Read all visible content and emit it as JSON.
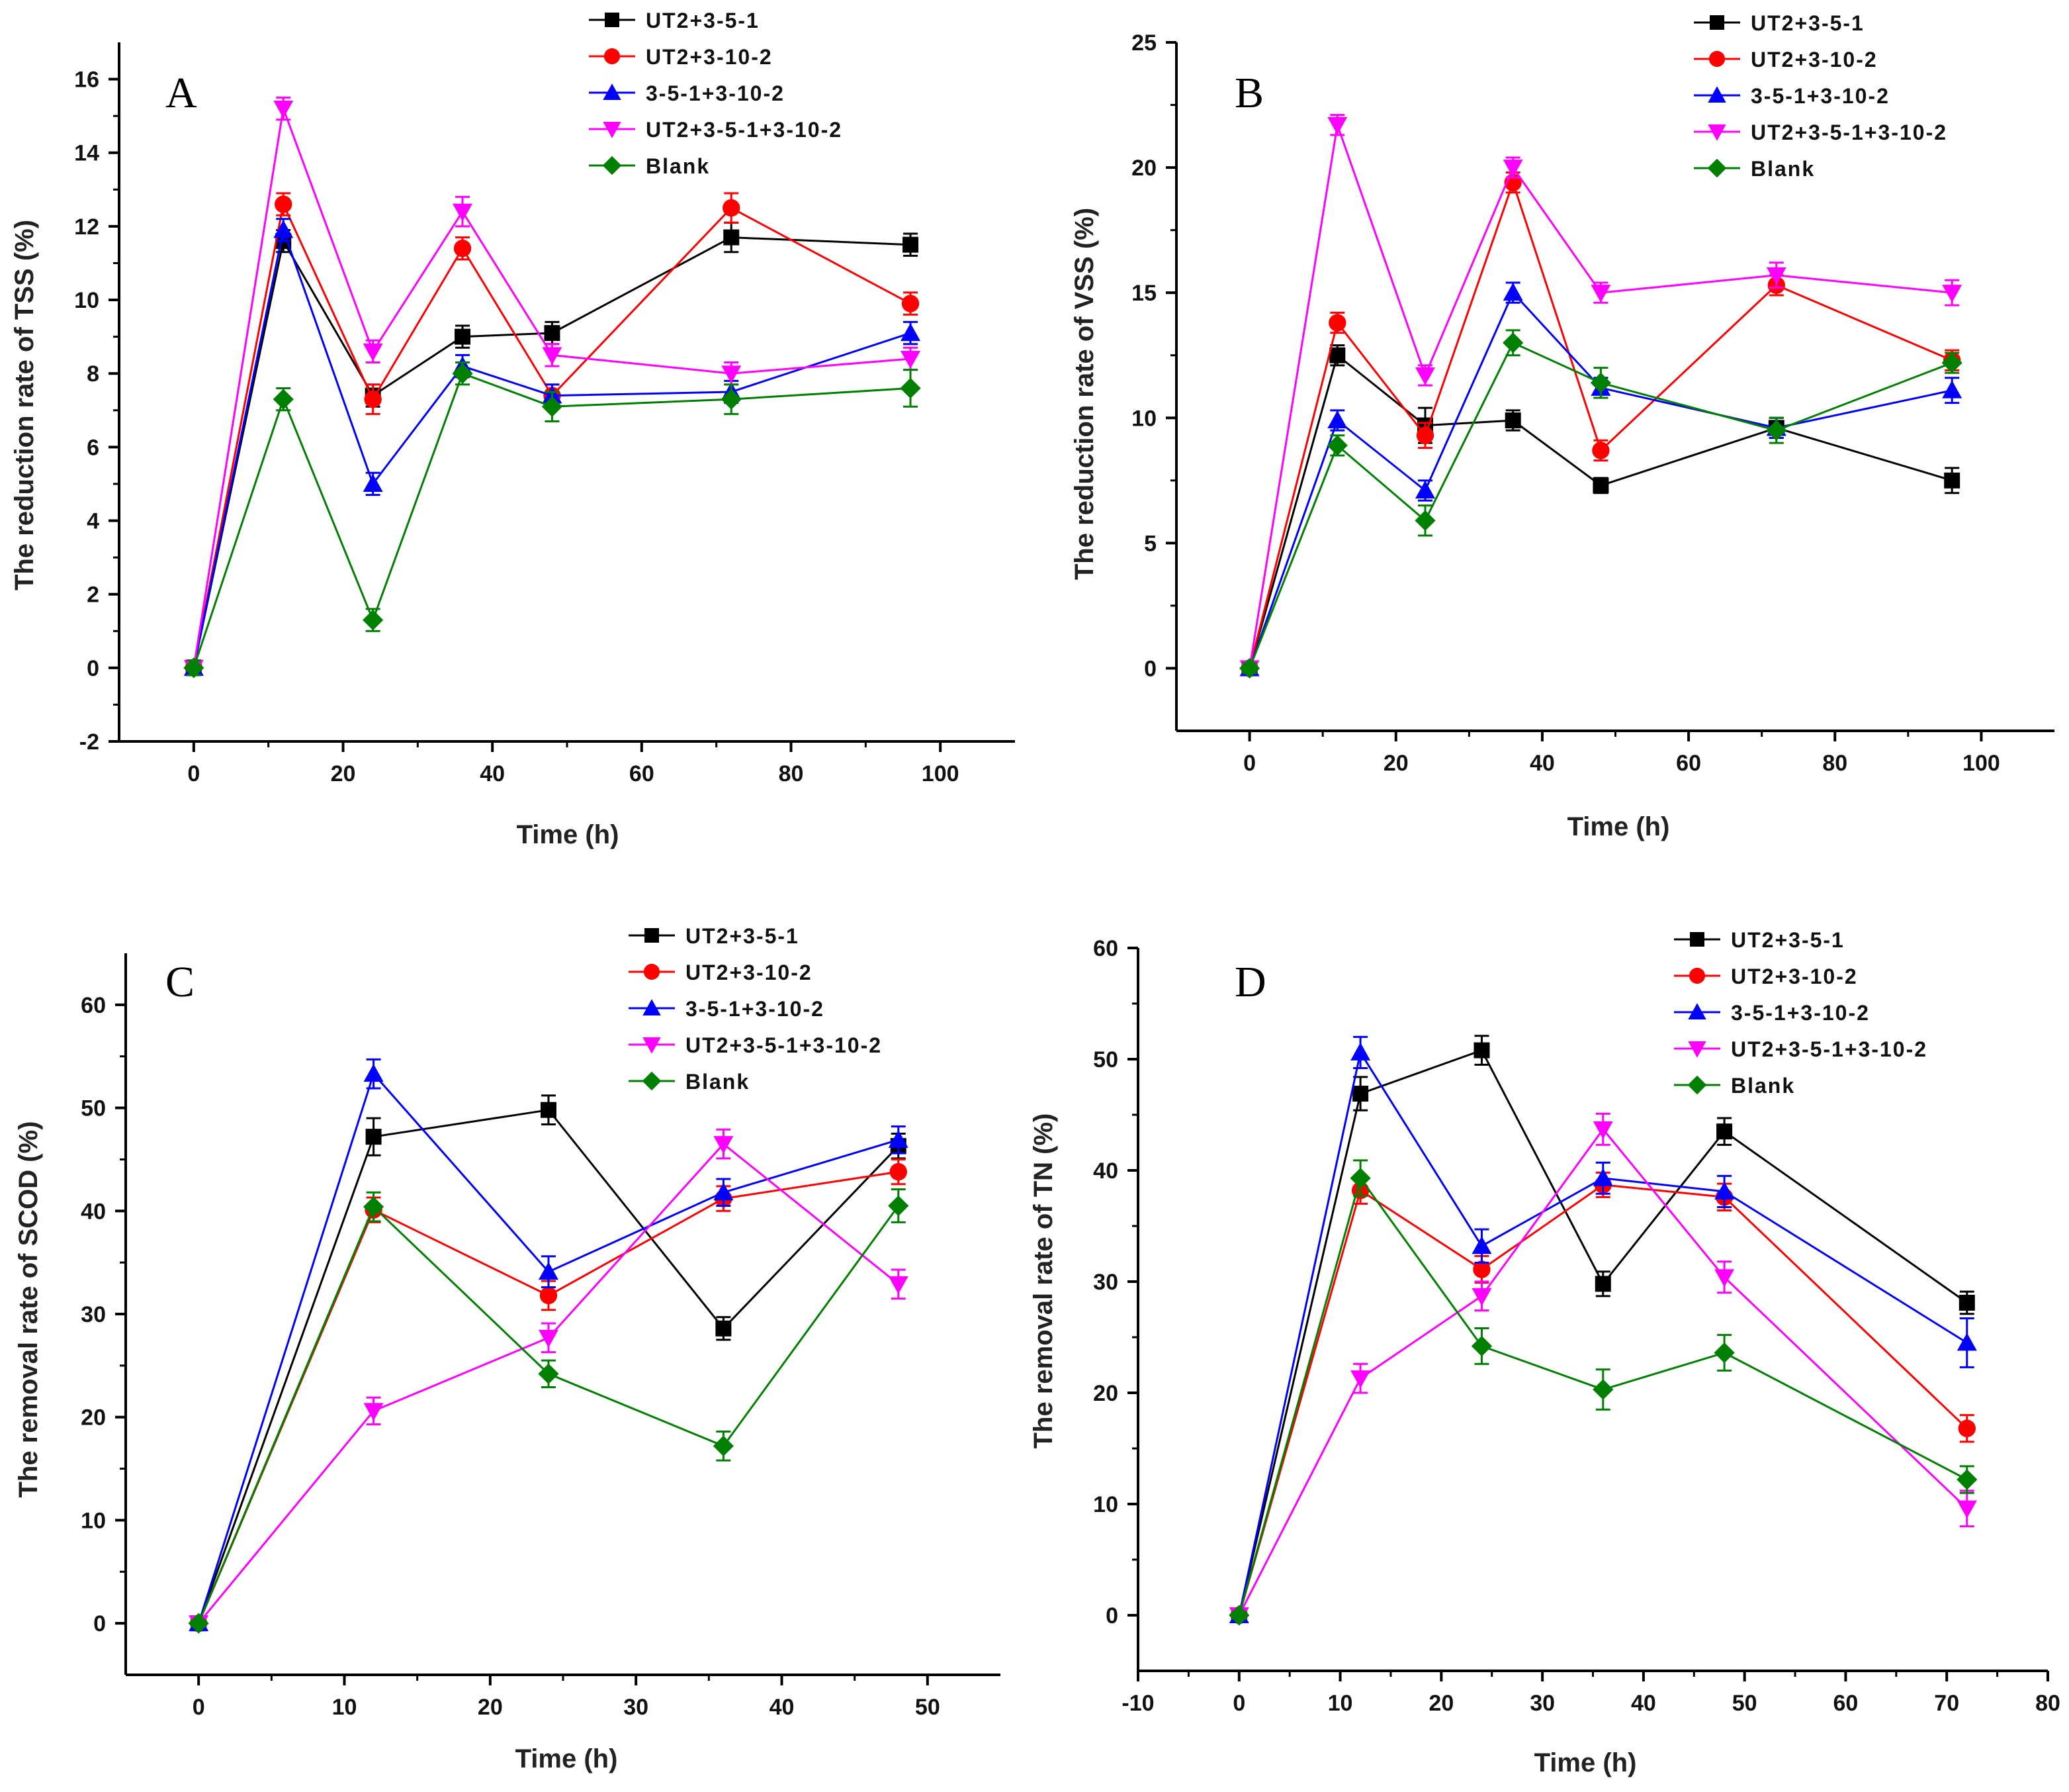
{
  "colors": {
    "UT2+3-5-1": "#000000",
    "UT2+3-10-2": "#ff0000",
    "3-5-1+3-10-2": "#0000ff",
    "UT2+3-5-1+3-10-2": "#ff00ff",
    "Blank": "#008000"
  },
  "chart_data": [
    {
      "type": "line",
      "panel": "A",
      "title": "",
      "xlabel": "Time (h)",
      "ylabel": "The reduction rate of TSS (%)",
      "xlim": [
        -10,
        110
      ],
      "ylim": [
        -2,
        17
      ],
      "xticks": [
        0,
        20,
        40,
        60,
        80,
        100
      ],
      "yticks": [
        -2,
        0,
        2,
        4,
        6,
        8,
        10,
        12,
        14,
        16
      ],
      "legend_position": "top-right",
      "x": [
        0,
        12,
        24,
        36,
        48,
        72,
        96
      ],
      "series": [
        {
          "name": "UT2+3-5-1",
          "marker": "square",
          "values": [
            0,
            11.6,
            7.4,
            9.0,
            9.1,
            11.7,
            11.5
          ],
          "errors": [
            0.2,
            0.3,
            0.3,
            0.3,
            0.3,
            0.4,
            0.3
          ]
        },
        {
          "name": "UT2+3-10-2",
          "marker": "circle",
          "values": [
            0,
            12.6,
            7.3,
            11.4,
            7.4,
            12.5,
            9.9
          ],
          "errors": [
            0.2,
            0.3,
            0.4,
            0.3,
            0.3,
            0.4,
            0.3
          ]
        },
        {
          "name": "3-5-1+3-10-2",
          "marker": "triangle-up",
          "values": [
            0,
            11.9,
            5.0,
            8.2,
            7.4,
            7.5,
            9.1
          ],
          "errors": [
            0.2,
            0.3,
            0.3,
            0.3,
            0.3,
            0.3,
            0.3
          ]
        },
        {
          "name": "UT2+3-5-1+3-10-2",
          "marker": "triangle-down",
          "values": [
            0,
            15.2,
            8.6,
            12.4,
            8.5,
            8.0,
            8.4
          ],
          "errors": [
            0.2,
            0.3,
            0.3,
            0.4,
            0.3,
            0.3,
            0.3
          ]
        },
        {
          "name": "Blank",
          "marker": "diamond",
          "values": [
            0,
            7.3,
            1.3,
            8.0,
            7.1,
            7.3,
            7.6
          ],
          "errors": [
            0.2,
            0.3,
            0.3,
            0.3,
            0.4,
            0.4,
            0.5
          ]
        }
      ]
    },
    {
      "type": "line",
      "panel": "B",
      "title": "",
      "xlabel": "Time (h)",
      "ylabel": "The reduction rate of VSS (%)",
      "xlim": [
        -10,
        110
      ],
      "ylim": [
        -2.5,
        25
      ],
      "xticks": [
        0,
        20,
        40,
        60,
        80,
        100
      ],
      "yticks": [
        0,
        5,
        10,
        15,
        20,
        25
      ],
      "legend_position": "top-right",
      "x": [
        0,
        12,
        24,
        36,
        48,
        72,
        96
      ],
      "series": [
        {
          "name": "UT2+3-5-1",
          "marker": "square",
          "values": [
            0,
            12.5,
            9.7,
            9.9,
            7.3,
            9.6,
            7.5
          ],
          "errors": [
            0.2,
            0.4,
            0.7,
            0.4,
            0.3,
            0.4,
            0.5
          ]
        },
        {
          "name": "UT2+3-10-2",
          "marker": "circle",
          "values": [
            0,
            13.8,
            9.3,
            19.4,
            8.7,
            15.3,
            12.3
          ],
          "errors": [
            0.2,
            0.4,
            0.5,
            0.4,
            0.4,
            0.4,
            0.4
          ]
        },
        {
          "name": "3-5-1+3-10-2",
          "marker": "triangle-up",
          "values": [
            0,
            9.9,
            7.1,
            15.0,
            11.2,
            9.6,
            11.1
          ],
          "errors": [
            0.2,
            0.4,
            0.4,
            0.4,
            0.4,
            0.4,
            0.5
          ]
        },
        {
          "name": "UT2+3-5-1+3-10-2",
          "marker": "triangle-down",
          "values": [
            0,
            21.7,
            11.7,
            20.0,
            15.0,
            15.7,
            15.0
          ],
          "errors": [
            0.2,
            0.4,
            0.4,
            0.4,
            0.4,
            0.5,
            0.5
          ]
        },
        {
          "name": "Blank",
          "marker": "diamond",
          "values": [
            0,
            8.9,
            5.9,
            13.0,
            11.4,
            9.5,
            12.2
          ],
          "errors": [
            0.2,
            0.4,
            0.6,
            0.5,
            0.6,
            0.5,
            0.4
          ]
        }
      ]
    },
    {
      "type": "line",
      "panel": "C",
      "title": "",
      "xlabel": "Time (h)",
      "ylabel": "The removal rate of SCOD (%)",
      "xlim": [
        -5,
        55
      ],
      "ylim": [
        -5,
        65
      ],
      "xticks": [
        0,
        10,
        20,
        30,
        40,
        50
      ],
      "yticks": [
        0,
        10,
        20,
        30,
        40,
        50,
        60
      ],
      "legend_position": "top-right",
      "x": [
        0,
        12,
        24,
        36,
        48
      ],
      "series": [
        {
          "name": "UT2+3-5-1",
          "marker": "square",
          "values": [
            0,
            47.2,
            49.8,
            28.6,
            46.3
          ],
          "errors": [
            0.3,
            1.8,
            1.4,
            1.1,
            1.2
          ]
        },
        {
          "name": "UT2+3-10-2",
          "marker": "circle",
          "values": [
            0,
            40.1,
            31.8,
            41.2,
            43.8
          ],
          "errors": [
            0.3,
            1.2,
            1.4,
            1.2,
            1.2
          ]
        },
        {
          "name": "3-5-1+3-10-2",
          "marker": "triangle-up",
          "values": [
            0,
            53.3,
            34.1,
            41.8,
            46.9
          ],
          "errors": [
            0.3,
            1.4,
            1.5,
            1.3,
            1.3
          ]
        },
        {
          "name": "UT2+3-5-1+3-10-2",
          "marker": "triangle-down",
          "values": [
            0,
            20.6,
            27.7,
            46.5,
            32.9
          ],
          "errors": [
            0.3,
            1.3,
            1.4,
            1.4,
            1.4
          ]
        },
        {
          "name": "Blank",
          "marker": "diamond",
          "values": [
            0,
            40.4,
            24.2,
            17.2,
            40.5
          ],
          "errors": [
            0.3,
            1.4,
            1.3,
            1.4,
            1.6
          ]
        }
      ]
    },
    {
      "type": "line",
      "panel": "D",
      "title": "",
      "xlabel": "Time (h)",
      "ylabel": "The removal rate of TN (%)",
      "xlim": [
        -10,
        80
      ],
      "ylim": [
        -5,
        60
      ],
      "xticks": [
        -10,
        0,
        10,
        20,
        30,
        40,
        50,
        60,
        70,
        80
      ],
      "yticks": [
        0,
        10,
        20,
        30,
        40,
        50,
        60
      ],
      "legend_position": "top-right",
      "x": [
        0,
        12,
        24,
        36,
        48,
        72
      ],
      "series": [
        {
          "name": "UT2+3-5-1",
          "marker": "square",
          "values": [
            0,
            46.9,
            50.8,
            29.8,
            43.5,
            28.1
          ],
          "errors": [
            0.3,
            1.5,
            1.3,
            1.1,
            1.2,
            1.0
          ]
        },
        {
          "name": "UT2+3-10-2",
          "marker": "circle",
          "values": [
            0,
            38.2,
            31.1,
            38.7,
            37.6,
            16.8
          ],
          "errors": [
            0.3,
            1.2,
            1.2,
            1.1,
            1.2,
            1.2
          ]
        },
        {
          "name": "3-5-1+3-10-2",
          "marker": "triangle-up",
          "values": [
            0,
            50.6,
            33.2,
            39.3,
            38.1,
            24.5
          ],
          "errors": [
            0.3,
            1.4,
            1.5,
            1.4,
            1.4,
            2.2
          ]
        },
        {
          "name": "UT2+3-5-1+3-10-2",
          "marker": "triangle-down",
          "values": [
            0,
            21.3,
            28.7,
            43.7,
            30.4,
            9.6
          ],
          "errors": [
            0.3,
            1.3,
            1.3,
            1.4,
            1.4,
            1.6
          ]
        },
        {
          "name": "Blank",
          "marker": "diamond",
          "values": [
            0,
            39.3,
            24.2,
            20.3,
            23.6,
            12.2
          ],
          "errors": [
            0.3,
            1.6,
            1.6,
            1.8,
            1.6,
            1.2
          ]
        }
      ]
    }
  ]
}
